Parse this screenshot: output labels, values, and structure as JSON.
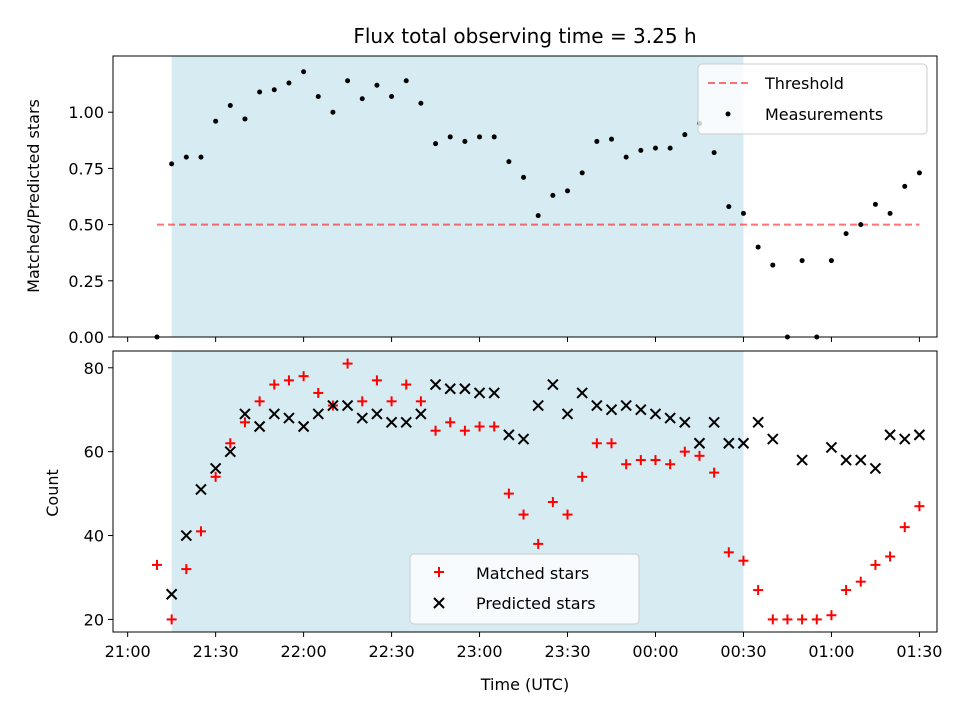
{
  "chart_data": {
    "type": "scatter",
    "title": "Flux total observing time = 3.25 h",
    "xlabel": "Time (UTC)",
    "x_ticks": [
      "21:00",
      "21:30",
      "22:00",
      "22:30",
      "23:00",
      "23:30",
      "00:00",
      "00:30",
      "01:00",
      "01:30"
    ],
    "xlim_minutes": [
      -5,
      276
    ],
    "shaded_span_minutes": [
      15,
      210
    ],
    "top": {
      "ylabel": "Matched/Predicted stars",
      "ylim": [
        0,
        1.25
      ],
      "yticks": [
        "0.00",
        "0.25",
        "0.50",
        "0.75",
        "1.00"
      ],
      "threshold": 0.5,
      "threshold_span_minutes": [
        10,
        270
      ],
      "legend": [
        "Threshold",
        "Measurements"
      ],
      "legend_position": "upper right",
      "measurements": [
        [
          10,
          0.0
        ],
        [
          15,
          0.77
        ],
        [
          20,
          0.8
        ],
        [
          25,
          0.8
        ],
        [
          30,
          0.96
        ],
        [
          35,
          1.03
        ],
        [
          40,
          0.97
        ],
        [
          45,
          1.09
        ],
        [
          50,
          1.1
        ],
        [
          55,
          1.13
        ],
        [
          60,
          1.18
        ],
        [
          65,
          1.07
        ],
        [
          70,
          1.0
        ],
        [
          75,
          1.14
        ],
        [
          80,
          1.06
        ],
        [
          85,
          1.12
        ],
        [
          90,
          1.07
        ],
        [
          95,
          1.14
        ],
        [
          100,
          1.04
        ],
        [
          105,
          0.86
        ],
        [
          110,
          0.89
        ],
        [
          115,
          0.87
        ],
        [
          120,
          0.89
        ],
        [
          125,
          0.89
        ],
        [
          130,
          0.78
        ],
        [
          135,
          0.71
        ],
        [
          140,
          0.54
        ],
        [
          145,
          0.63
        ],
        [
          150,
          0.65
        ],
        [
          155,
          0.73
        ],
        [
          160,
          0.87
        ],
        [
          165,
          0.88
        ],
        [
          170,
          0.8
        ],
        [
          175,
          0.83
        ],
        [
          180,
          0.84
        ],
        [
          185,
          0.84
        ],
        [
          190,
          0.9
        ],
        [
          195,
          0.95
        ],
        [
          200,
          0.82
        ],
        [
          205,
          0.58
        ],
        [
          210,
          0.55
        ],
        [
          215,
          0.4
        ],
        [
          220,
          0.32
        ],
        [
          225,
          0.0
        ],
        [
          230,
          0.34
        ],
        [
          235,
          0.0
        ],
        [
          240,
          0.34
        ],
        [
          245,
          0.46
        ],
        [
          250,
          0.5
        ],
        [
          255,
          0.59
        ],
        [
          260,
          0.55
        ],
        [
          265,
          0.67
        ],
        [
          270,
          0.73
        ]
      ]
    },
    "bottom": {
      "ylabel": "Count",
      "ylim": [
        17,
        84
      ],
      "yticks": [
        "20",
        "40",
        "60",
        "80"
      ],
      "legend": [
        "Matched stars",
        "Predicted stars"
      ],
      "legend_position": "lower center",
      "matched": [
        [
          10,
          33
        ],
        [
          15,
          20
        ],
        [
          20,
          32
        ],
        [
          25,
          41
        ],
        [
          30,
          54
        ],
        [
          35,
          62
        ],
        [
          40,
          67
        ],
        [
          45,
          72
        ],
        [
          50,
          76
        ],
        [
          55,
          77
        ],
        [
          60,
          78
        ],
        [
          65,
          74
        ],
        [
          70,
          71
        ],
        [
          75,
          81
        ],
        [
          80,
          72
        ],
        [
          85,
          77
        ],
        [
          90,
          72
        ],
        [
          95,
          76
        ],
        [
          100,
          72
        ],
        [
          105,
          65
        ],
        [
          110,
          67
        ],
        [
          115,
          65
        ],
        [
          120,
          66
        ],
        [
          125,
          66
        ],
        [
          130,
          50
        ],
        [
          135,
          45
        ],
        [
          140,
          38
        ],
        [
          145,
          48
        ],
        [
          150,
          45
        ],
        [
          155,
          54
        ],
        [
          160,
          62
        ],
        [
          165,
          62
        ],
        [
          170,
          57
        ],
        [
          175,
          58
        ],
        [
          180,
          58
        ],
        [
          185,
          57
        ],
        [
          190,
          60
        ],
        [
          195,
          59
        ],
        [
          200,
          55
        ],
        [
          205,
          36
        ],
        [
          210,
          34
        ],
        [
          215,
          27
        ],
        [
          220,
          20
        ],
        [
          225,
          20
        ],
        [
          230,
          20
        ],
        [
          235,
          20
        ],
        [
          240,
          21
        ],
        [
          245,
          27
        ],
        [
          250,
          29
        ],
        [
          255,
          33
        ],
        [
          260,
          35
        ],
        [
          265,
          42
        ],
        [
          270,
          47
        ]
      ],
      "predicted": [
        [
          15,
          26
        ],
        [
          20,
          40
        ],
        [
          25,
          51
        ],
        [
          30,
          56
        ],
        [
          35,
          60
        ],
        [
          40,
          69
        ],
        [
          45,
          66
        ],
        [
          50,
          69
        ],
        [
          55,
          68
        ],
        [
          60,
          66
        ],
        [
          65,
          69
        ],
        [
          70,
          71
        ],
        [
          75,
          71
        ],
        [
          80,
          68
        ],
        [
          85,
          69
        ],
        [
          90,
          67
        ],
        [
          95,
          67
        ],
        [
          100,
          69
        ],
        [
          105,
          76
        ],
        [
          110,
          75
        ],
        [
          115,
          75
        ],
        [
          120,
          74
        ],
        [
          125,
          74
        ],
        [
          130,
          64
        ],
        [
          135,
          63
        ],
        [
          140,
          71
        ],
        [
          145,
          76
        ],
        [
          150,
          69
        ],
        [
          155,
          74
        ],
        [
          160,
          71
        ],
        [
          165,
          70
        ],
        [
          170,
          71
        ],
        [
          175,
          70
        ],
        [
          180,
          69
        ],
        [
          185,
          68
        ],
        [
          190,
          67
        ],
        [
          195,
          62
        ],
        [
          200,
          67
        ],
        [
          205,
          62
        ],
        [
          210,
          62
        ],
        [
          215,
          67
        ],
        [
          220,
          63
        ],
        [
          230,
          58
        ],
        [
          240,
          61
        ],
        [
          245,
          58
        ],
        [
          250,
          58
        ],
        [
          255,
          56
        ],
        [
          260,
          64
        ],
        [
          265,
          63
        ],
        [
          270,
          64
        ]
      ]
    },
    "colors": {
      "span": "#add8e6",
      "threshold": "#ff0000",
      "measurement": "#000000",
      "matched": "#ff0000",
      "predicted": "#000000"
    }
  }
}
